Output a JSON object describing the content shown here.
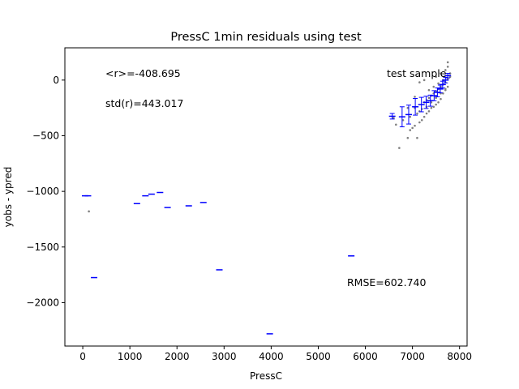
{
  "chart_data": {
    "type": "scatter",
    "title": "PressC 1min residuals using test",
    "xlabel": "PressC",
    "ylabel": "yobs - ypred",
    "xlim": [
      -380,
      8160
    ],
    "ylim": [
      -2390,
      290
    ],
    "x_ticks": [
      0,
      1000,
      2000,
      3000,
      4000,
      5000,
      6000,
      7000,
      8000
    ],
    "y_ticks": [
      0,
      -500,
      -1000,
      -1500,
      -2000
    ],
    "x_tick_labels": [
      "0",
      "1000",
      "2000",
      "3000",
      "4000",
      "5000",
      "6000",
      "7000",
      "8000"
    ],
    "y_tick_labels": [
      "0",
      "−500",
      "−1000",
      "−1500",
      "−2000"
    ],
    "grid": false,
    "annotations": {
      "mean": "<r>=-408.695",
      "std": "std(r)=443.017",
      "sample": "test sample",
      "rmse": "RMSE=602.740"
    },
    "colors": {
      "points": "#808080",
      "binned": "#0000ff"
    },
    "series": [
      {
        "role": "residual-points",
        "color": "#808080",
        "x": [
          130,
          6720,
          6900,
          6950,
          7000,
          7050,
          7100,
          7150,
          7200,
          7250,
          7300,
          7350,
          7400,
          7450,
          7500,
          7550,
          7600,
          7650,
          7700,
          7750,
          6600,
          6650,
          6800,
          7050,
          7150,
          7250,
          7300,
          7350,
          7400,
          7450,
          7500,
          7550,
          7600,
          7650,
          7700,
          7750,
          7800,
          6950,
          7100,
          7200,
          7300,
          7400,
          7500,
          7600,
          7700,
          7800,
          7350,
          7450,
          7550,
          7650,
          7750,
          7500,
          7600,
          7700,
          7750,
          7150,
          7250,
          7050,
          6900
        ],
        "y": [
          -1180,
          -610,
          -520,
          -450,
          -430,
          -410,
          -520,
          -380,
          -360,
          -330,
          -300,
          -280,
          -250,
          -240,
          -220,
          -200,
          -170,
          -120,
          -90,
          -60,
          -340,
          -400,
          -360,
          -250,
          -280,
          -200,
          -180,
          -160,
          -140,
          -120,
          -100,
          -80,
          -60,
          -40,
          -20,
          10,
          30,
          -330,
          -300,
          -260,
          -240,
          -200,
          -160,
          -120,
          -80,
          60,
          -90,
          -60,
          -30,
          0,
          160,
          30,
          60,
          90,
          120,
          -20,
          0,
          -150,
          -250
        ]
      },
      {
        "role": "binned-means",
        "color": "#0000ff",
        "x": [
          50,
          110,
          240,
          1150,
          1330,
          1460,
          1640,
          1800,
          2250,
          2560,
          2900,
          3970,
          5700,
          6570,
          6780,
          6920,
          7060,
          7190,
          7290,
          7380,
          7460,
          7530,
          7590,
          7640,
          7700,
          7750
        ],
        "y": [
          -1040,
          -1040,
          -1775,
          -1110,
          -1040,
          -1025,
          -1010,
          -1145,
          -1130,
          -1100,
          -1705,
          -2280,
          -1580,
          -325,
          -330,
          -310,
          -240,
          -220,
          -200,
          -185,
          -140,
          -110,
          -80,
          -40,
          0,
          40
        ],
        "err": [
          0,
          0,
          0,
          0,
          0,
          0,
          0,
          0,
          0,
          0,
          0,
          0,
          0,
          25,
          90,
          85,
          75,
          65,
          55,
          50,
          45,
          40,
          35,
          30,
          25,
          20
        ]
      }
    ]
  }
}
